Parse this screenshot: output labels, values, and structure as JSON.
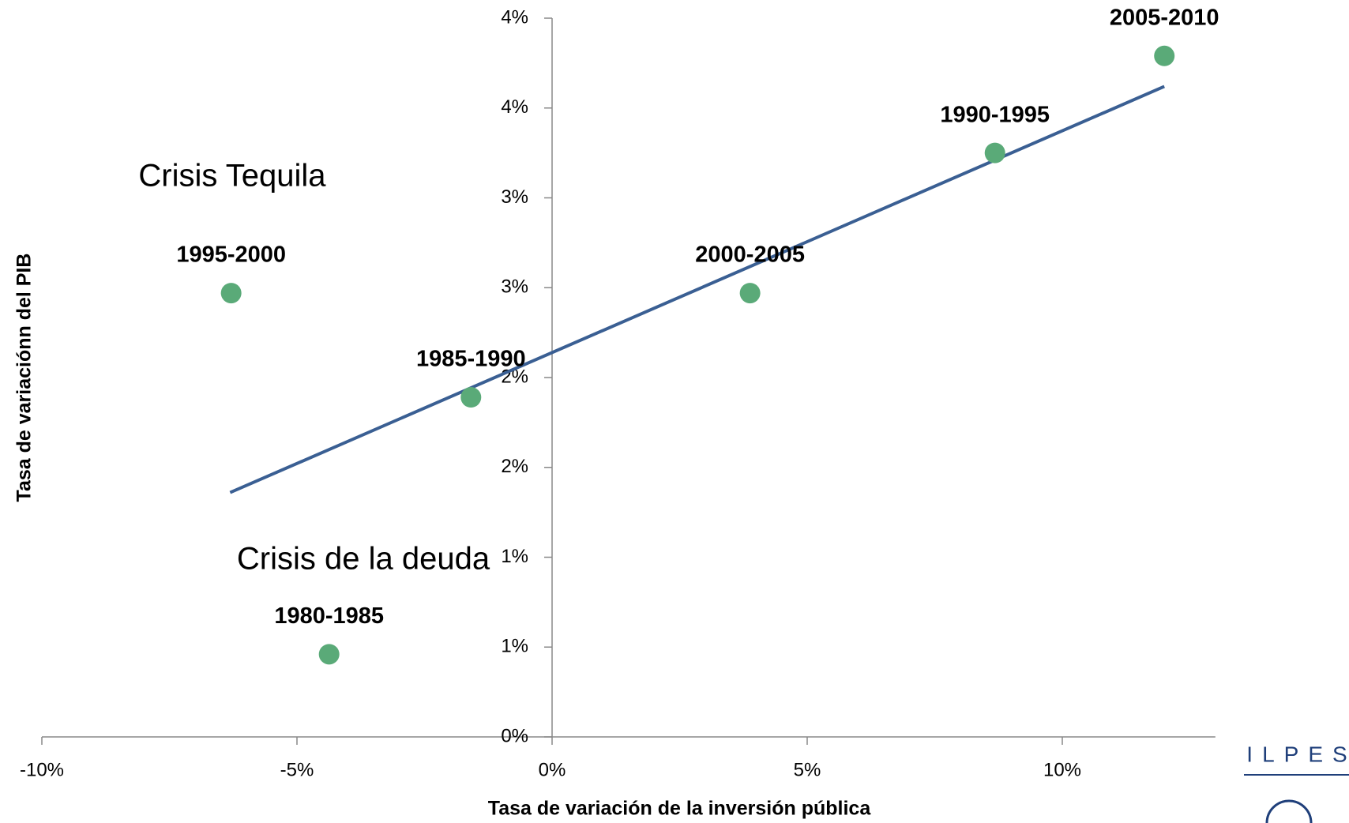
{
  "chart_data": {
    "type": "scatter",
    "x_label": "Tasa de variación de la inversión pública",
    "y_label": "Tasa de variaciónn del PIB",
    "labels": [
      "1995-2000",
      "1985-1990",
      "2000-2005",
      "1990-1995",
      "2005-2010",
      "1980-1985"
    ],
    "x": [
      -6.29,
      -1.59,
      3.88,
      8.68,
      12.0,
      -4.37
    ],
    "values": [
      2.47,
      1.89,
      2.47,
      3.25,
      3.79,
      0.46
    ],
    "color": "#5aaa78",
    "trendline": {
      "color": "#3a5f93",
      "x": [
        -6.31,
        12.0
      ],
      "y": [
        1.36,
        3.62
      ]
    },
    "annotations": [
      "Crisis Tequila",
      "Crisis de la deuda"
    ],
    "logo": "ILPES",
    "xlim": [
      -10,
      13
    ],
    "ylim": [
      0,
      4
    ],
    "xticks": [
      {
        "value": -10,
        "label": "-10%"
      },
      {
        "value": -5,
        "label": "-5%"
      },
      {
        "value": 0,
        "label": "0%"
      },
      {
        "value": 5,
        "label": "5%"
      },
      {
        "value": 10,
        "label": "10%"
      }
    ],
    "yticks": [
      {
        "value": 0,
        "label": "0%"
      },
      {
        "value": 0.5,
        "label": "1%"
      },
      {
        "value": 1,
        "label": "1%"
      },
      {
        "value": 1.5,
        "label": "2%"
      },
      {
        "value": 2,
        "label": "2%"
      },
      {
        "value": 2.5,
        "label": "3%"
      },
      {
        "value": 3,
        "label": "3%"
      },
      {
        "value": 3.5,
        "label": "4%"
      },
      {
        "value": 4,
        "label": "4%"
      }
    ]
  }
}
